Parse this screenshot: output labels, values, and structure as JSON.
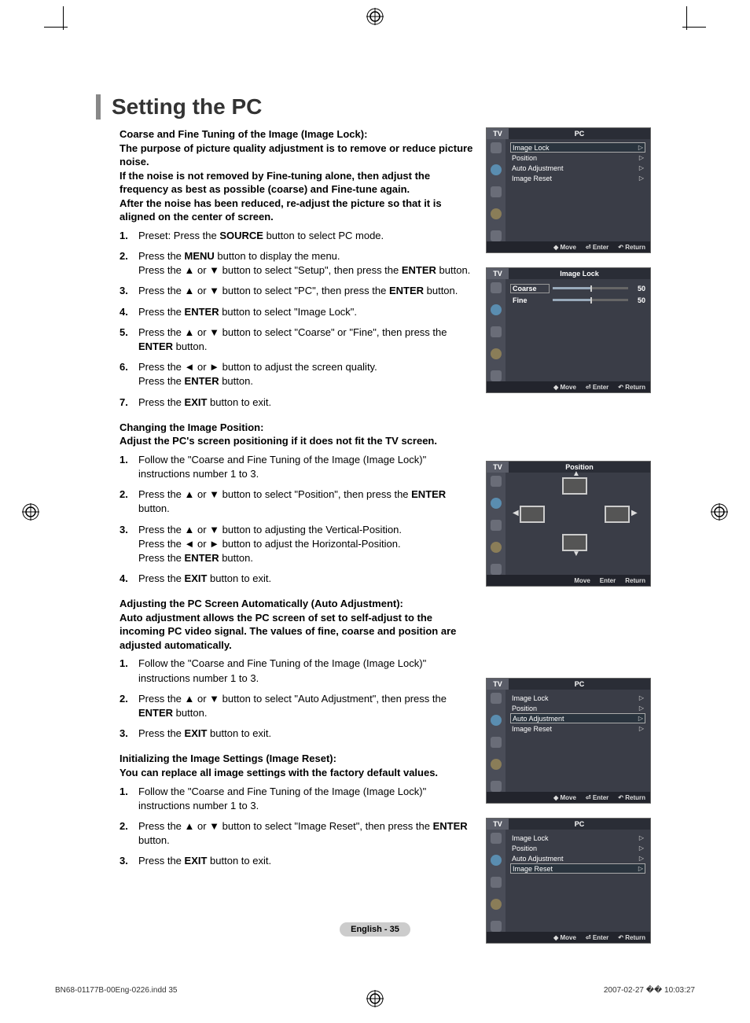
{
  "title": "Setting the PC",
  "sections": {
    "s1": {
      "intro": "Coarse and Fine Tuning of the Image (Image Lock):\nThe purpose of picture quality adjustment is to remove or reduce picture noise.\nIf the noise is not removed by Fine-tuning alone, then adjust the frequency as best as possible (coarse) and Fine-tune again.\nAfter the noise has been reduced, re-adjust the picture so that it is aligned on the center of screen.",
      "steps": [
        "Preset: Press the <b>SOURCE</b> button to select PC mode.",
        "Press the <b>MENU</b> button to display the menu.<br>Press the ▲ or ▼ button to select \"Setup\", then press the <b>ENTER</b> button.",
        "Press the ▲ or ▼ button to select \"PC\", then press the <b>ENTER</b> button.",
        "Press the <b>ENTER</b> button to select \"Image Lock\".",
        "Press the  ▲ or ▼ button to select \"Coarse\" or \"Fine\", then press the <b>ENTER</b> button.",
        "Press the ◄ or ► button to adjust the screen quality.<br>Press the <b>ENTER</b> button.",
        "Press the <b>EXIT</b> button to exit."
      ]
    },
    "s2": {
      "intro": "Changing the Image Position:\nAdjust the PC's screen positioning if it does not fit the TV screen.",
      "steps": [
        "Follow the \"Coarse and Fine Tuning of the Image (Image Lock)\"<br>instructions number 1 to 3.",
        "Press the ▲ or ▼ button to select \"Position\", then press the <b>ENTER</b> button.",
        "Press the ▲ or ▼ button to adjusting the Vertical-Position.<br>Press the ◄ or ► button to adjust the Horizontal-Position.<br>Press the <b>ENTER</b> button.",
        "Press the <b>EXIT</b> button to exit."
      ]
    },
    "s3": {
      "intro": "Adjusting the PC Screen Automatically (Auto Adjustment):\nAuto adjustment allows the PC screen of set to self-adjust to the incoming PC video signal. The values of fine, coarse and position are adjusted automatically.",
      "steps": [
        "Follow the \"Coarse and Fine Tuning of the Image (Image Lock)\" instructions number 1 to 3.",
        "Press the ▲ or ▼ button to select \"Auto Adjustment\", then press the <b>ENTER</b> button.",
        "Press the <b>EXIT</b> button to exit."
      ]
    },
    "s4": {
      "intro": "Initializing the Image Settings (Image Reset):\nYou can replace all image settings with the factory default values.",
      "steps": [
        "Follow the \"Coarse and Fine Tuning of the Image (Image Lock)\" instructions number 1 to 3.",
        "Press the ▲ or ▼ button to select \"Image Reset\", then press the <b>ENTER</b> button.",
        "Press the <b>EXIT</b> button to exit."
      ]
    }
  },
  "osd": {
    "tv": "TV",
    "pc_title": "PC",
    "items": {
      "image_lock": "Image Lock",
      "position": "Position",
      "auto_adj": "Auto Adjustment",
      "image_reset": "Image Reset"
    },
    "footer": {
      "move": "Move",
      "enter": "Enter",
      "return": "Return"
    },
    "lock_title": "Image Lock",
    "coarse": "Coarse",
    "fine": "Fine",
    "val50": "50",
    "pos_title": "Position"
  },
  "page_label": "English - 35",
  "print_footer": {
    "left": "BN68-01177B-00Eng-0226.indd   35",
    "right": "2007-02-27   �� 10:03:27"
  },
  "colors": {
    "osd_bg": "#3a3d47",
    "footer_bg": "#22242c",
    "badge_bg": "#cccccc"
  }
}
